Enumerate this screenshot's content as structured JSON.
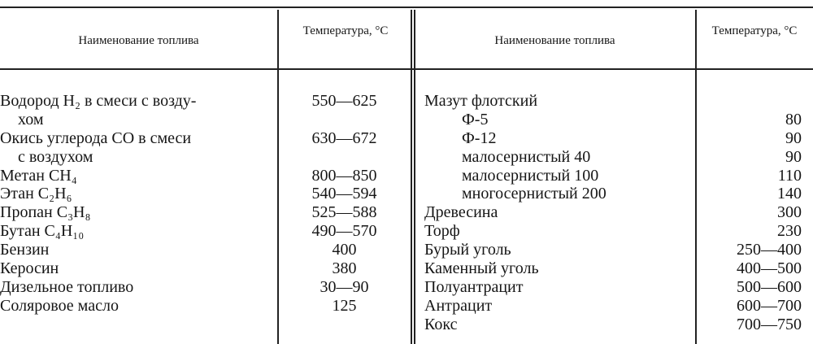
{
  "header": {
    "left_name": "Наименование топлива",
    "left_temp": "Температура, °С",
    "right_name": "Наименование топлива",
    "right_temp": "Температура, °С"
  },
  "left_rows": [
    {
      "name": [
        "Водород H₂ в смеси с возду-",
        "хом"
      ],
      "temp": "550—625"
    },
    {
      "name": [
        "Окись углерода CO в смеси",
        "с воздухом"
      ],
      "temp": "630—672"
    },
    {
      "name": [
        "Метан CH₄"
      ],
      "temp": "800—850"
    },
    {
      "name": [
        "Этан C₂H₆"
      ],
      "temp": "540—594"
    },
    {
      "name": [
        "Пропан C₃H₈"
      ],
      "temp": "525—588"
    },
    {
      "name": [
        "Бутан C₄H₁₀"
      ],
      "temp": "490—570"
    },
    {
      "name": [
        "Бензин"
      ],
      "temp": "400"
    },
    {
      "name": [
        "Керосин"
      ],
      "temp": "380"
    },
    {
      "name": [
        "Дизельное топливо"
      ],
      "temp": "30—90"
    },
    {
      "name": [
        "Соляровое масло"
      ],
      "temp": "125"
    }
  ],
  "right_rows": [
    {
      "name": "Мазут флотский",
      "temp": "",
      "indent": 0
    },
    {
      "name": "Ф-5",
      "temp": "80",
      "indent": 1
    },
    {
      "name": "Ф-12",
      "temp": "90",
      "indent": 1
    },
    {
      "name": "малосернистый 40",
      "temp": "90",
      "indent": 1
    },
    {
      "name": "малосернистый 100",
      "temp": "110",
      "indent": 1
    },
    {
      "name": "многосернистый 200",
      "temp": "140",
      "indent": 1
    },
    {
      "name": "Древесина",
      "temp": "300",
      "indent": 0
    },
    {
      "name": "Торф",
      "temp": "230",
      "indent": 0
    },
    {
      "name": "Бурый уголь",
      "temp": "250—400",
      "indent": 0
    },
    {
      "name": "Каменный уголь",
      "temp": "400—500",
      "indent": 0
    },
    {
      "name": "Полуантрацит",
      "temp": "500—600",
      "indent": 0
    },
    {
      "name": "Антрацит",
      "temp": "600—700",
      "indent": 0
    },
    {
      "name": "Кокс",
      "temp": "700—750",
      "indent": 0
    }
  ]
}
